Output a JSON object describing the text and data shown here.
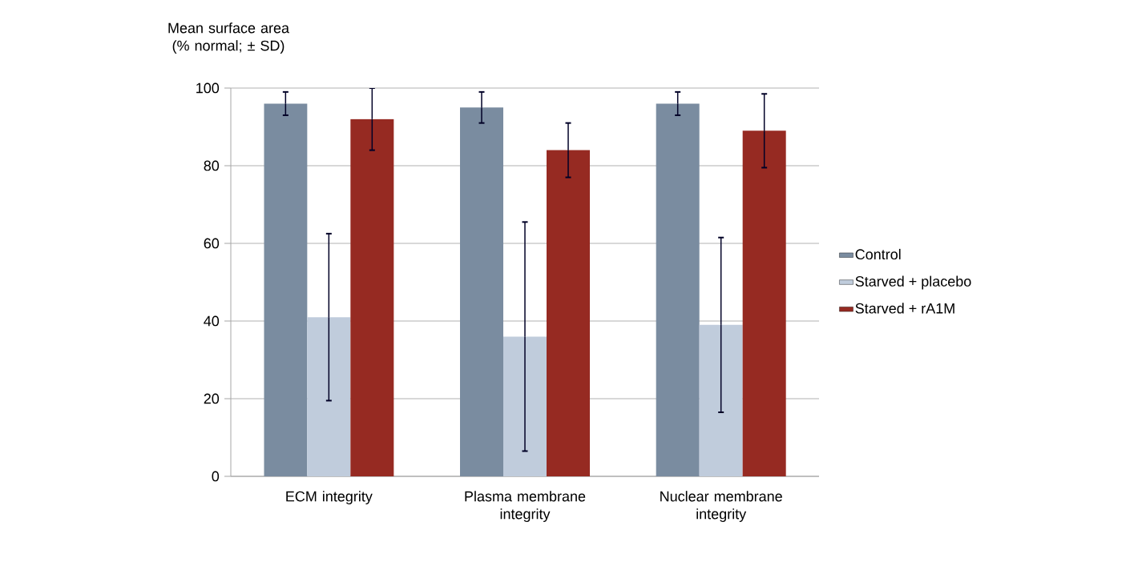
{
  "chart_data": {
    "type": "bar",
    "ylabel": "Mean surface area (% normal; ± SD)",
    "categories": [
      "ECM integrity",
      "Plasma membrane integrity",
      "Nuclear membrane integrity"
    ],
    "series": [
      {
        "name": "Control",
        "color": "#7a8ca0",
        "values": [
          96,
          95,
          96
        ],
        "errors": [
          3,
          4,
          3
        ]
      },
      {
        "name": "Starved + placebo",
        "color": "#c0ccdc",
        "values": [
          41,
          36,
          39
        ],
        "errors": [
          21.5,
          29.5,
          22.5
        ]
      },
      {
        "name": "Starved + rA1M",
        "color": "#962a22",
        "values": [
          92,
          84,
          89
        ],
        "errors": [
          8,
          7,
          9.5
        ]
      }
    ],
    "ylim": [
      0,
      100
    ],
    "yticks": [
      0,
      20,
      40,
      60,
      80,
      100
    ],
    "grid": "y",
    "legend": "right"
  }
}
